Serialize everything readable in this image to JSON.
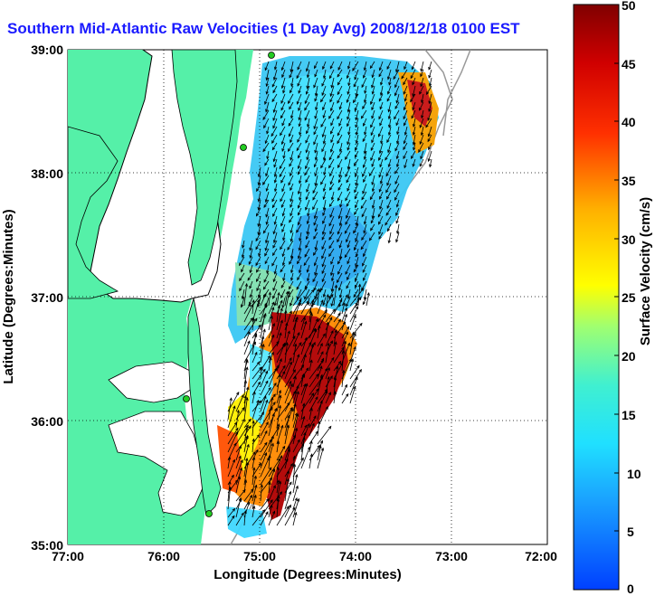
{
  "title": "Southern Mid-Atlantic Raw Velocities (1 Day Avg) 2008/12/18 0100 EST",
  "map": {
    "xlabel": "Longitude (Degrees:Minutes)",
    "ylabel": "Latitude (Degrees:Minutes)",
    "x_ticks": [
      "77:00",
      "76:00",
      "75:00",
      "74:00",
      "73:00",
      "72:00"
    ],
    "y_ticks": [
      "39:00",
      "38:00",
      "37:00",
      "36:00",
      "35:00"
    ],
    "lon_range": [
      -77,
      -72
    ],
    "lat_range": [
      35,
      39
    ],
    "grid": true,
    "land_color": "#55f0a8",
    "station_color": "#22cc22"
  },
  "colorbar": {
    "label": "Surface Velocity (cm/s)",
    "ticks": [
      "50",
      "45",
      "40",
      "35",
      "30",
      "25",
      "20",
      "15",
      "10",
      "5",
      "0"
    ],
    "range": [
      0,
      50
    ]
  }
}
